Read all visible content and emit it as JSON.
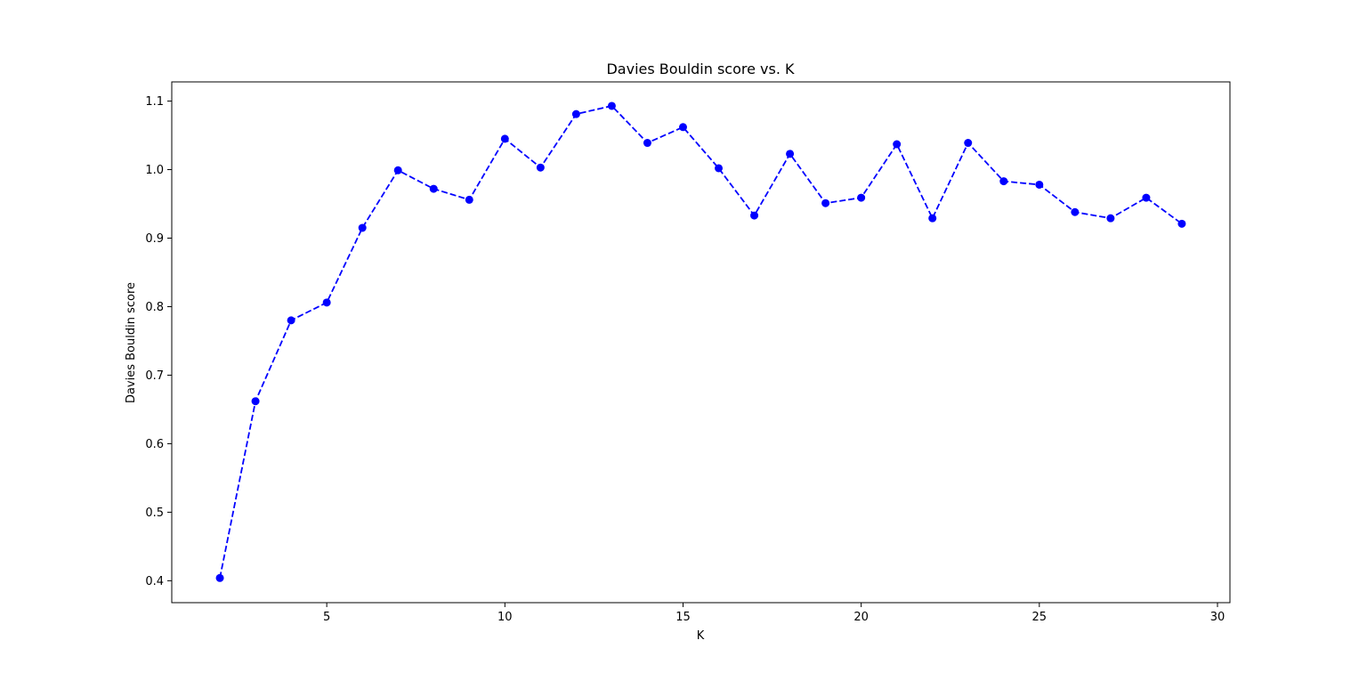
{
  "chart_data": {
    "type": "line",
    "title": "Davies Bouldin score vs. K",
    "xlabel": "K",
    "ylabel": "Davies Bouldin score",
    "xlim": [
      0.65,
      30.35
    ],
    "ylim": [
      0.368,
      1.128
    ],
    "xticks": [
      5,
      10,
      15,
      20,
      25,
      30
    ],
    "yticks": [
      0.4,
      0.5,
      0.6,
      0.7,
      0.8,
      0.9,
      1.0,
      1.1
    ],
    "xtick_labels": [
      "5",
      "10",
      "15",
      "20",
      "25",
      "30"
    ],
    "ytick_labels": [
      "0.4",
      "0.5",
      "0.6",
      "0.7",
      "0.8",
      "0.9",
      "1.0",
      "1.1"
    ],
    "grid": false,
    "legend": "none",
    "series": [
      {
        "color": "#0000ff",
        "line_style": "dashed",
        "marker": "circle",
        "x": [
          2,
          3,
          4,
          5,
          6,
          7,
          8,
          9,
          10,
          11,
          12,
          13,
          14,
          15,
          16,
          17,
          18,
          19,
          20,
          21,
          22,
          23,
          24,
          25,
          26,
          27,
          28,
          29
        ],
        "y": [
          0.404,
          0.662,
          0.78,
          0.806,
          0.915,
          0.999,
          0.972,
          0.956,
          1.045,
          1.003,
          1.081,
          1.093,
          1.039,
          1.062,
          1.002,
          0.933,
          1.023,
          0.951,
          0.959,
          1.037,
          0.929,
          1.039,
          0.983,
          0.978,
          0.938,
          0.929,
          0.959,
          0.921
        ]
      }
    ]
  }
}
